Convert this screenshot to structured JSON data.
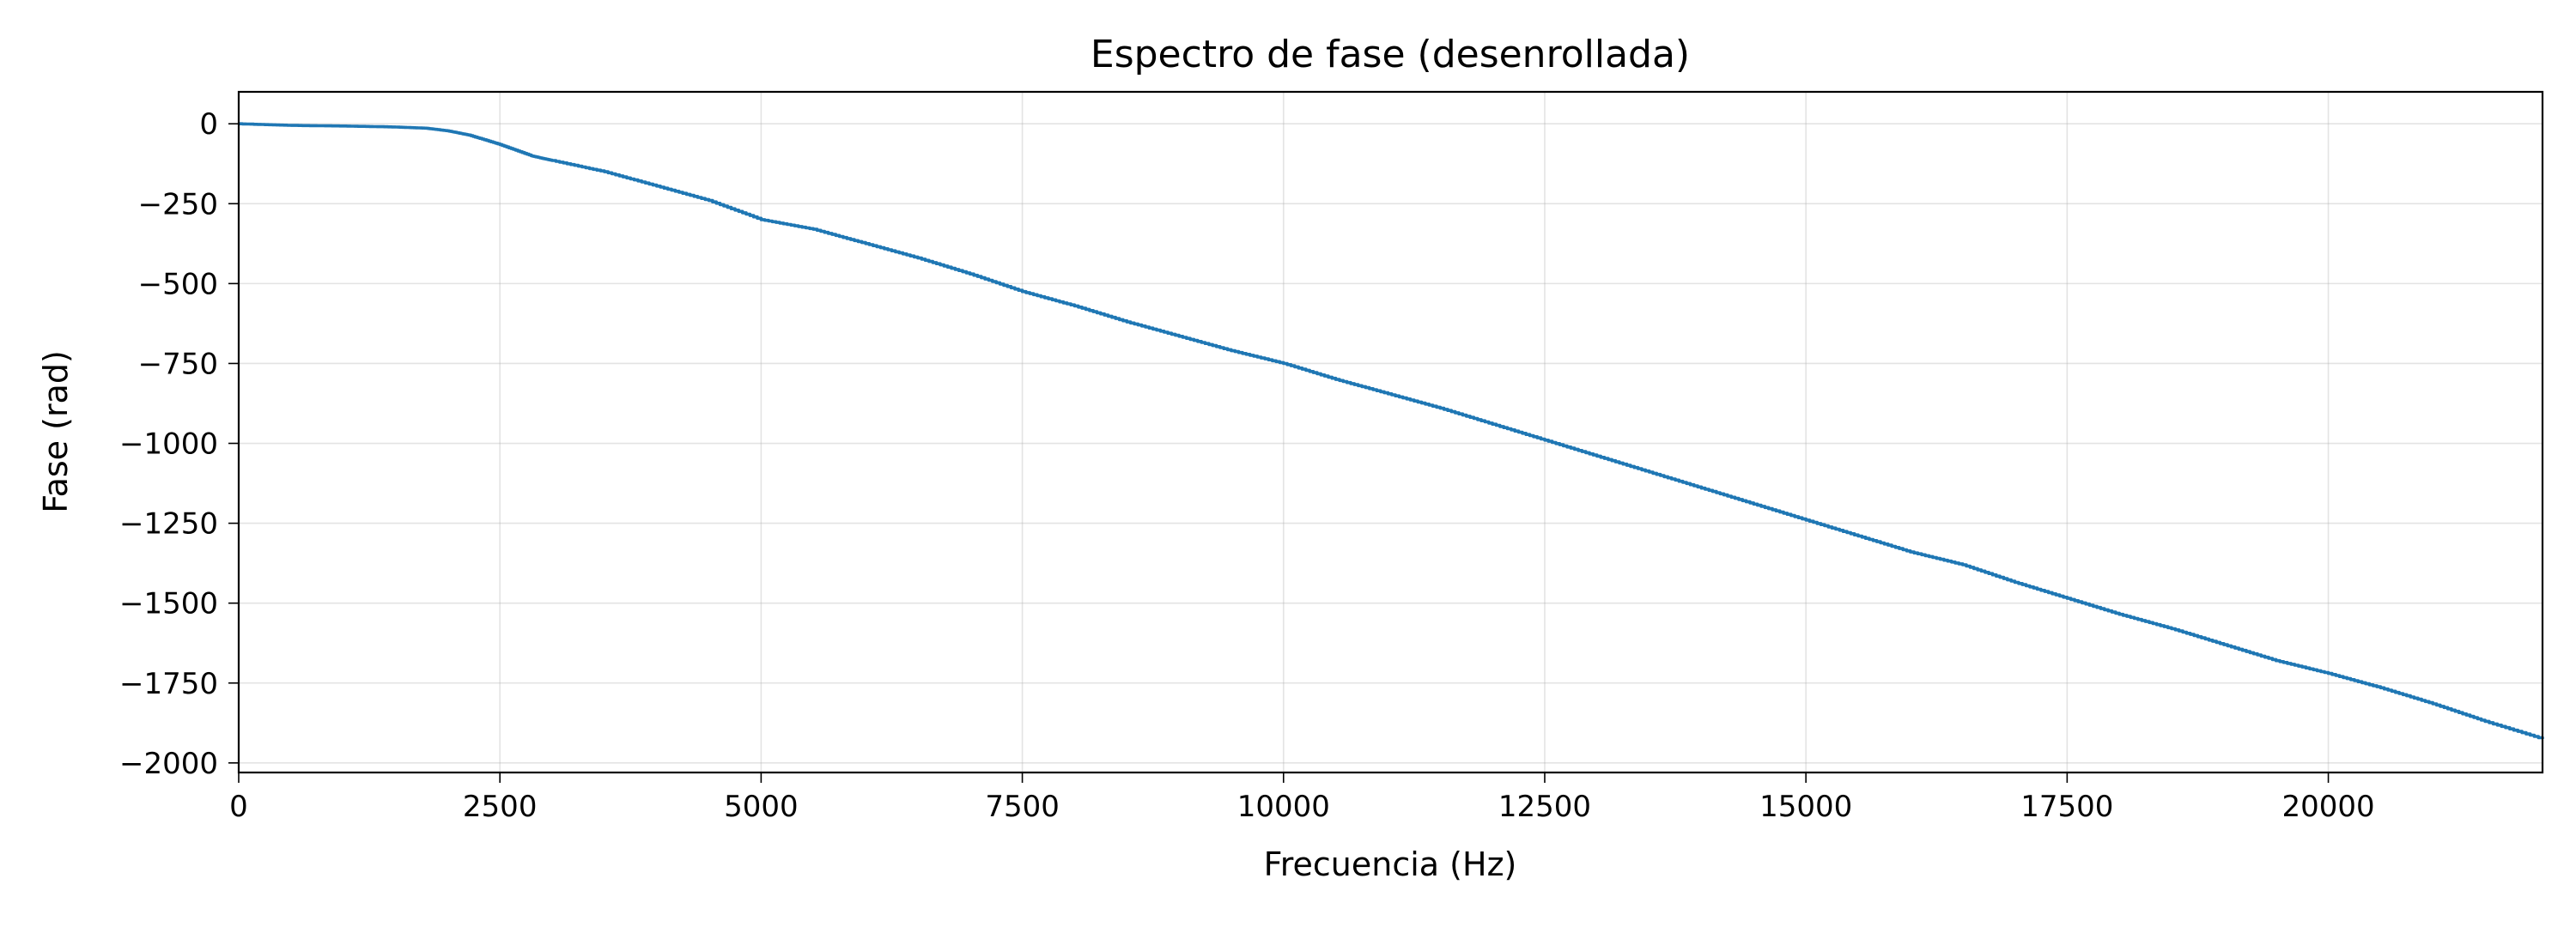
{
  "chart_data": {
    "type": "line",
    "title": "Espectro de fase (desenrollada)",
    "xlabel": "Frecuencia (Hz)",
    "ylabel": "Fase (rad)",
    "xlim": [
      0,
      22050
    ],
    "ylim": [
      -2030,
      100
    ],
    "grid": true,
    "legend": "none",
    "x_ticks": [
      0,
      2500,
      5000,
      7500,
      10000,
      12500,
      15000,
      17500,
      20000
    ],
    "x_tick_labels": [
      "0",
      "2500",
      "5000",
      "7500",
      "10000",
      "12500",
      "15000",
      "17500",
      "20000"
    ],
    "y_ticks": [
      0,
      -250,
      -500,
      -750,
      -1000,
      -1250,
      -1500,
      -1750,
      -2000
    ],
    "y_tick_labels": [
      "0",
      "−250",
      "−500",
      "−750",
      "−1000",
      "−1250",
      "−1500",
      "−1750",
      "−2000"
    ],
    "colors": {
      "line": "#1f77b4"
    },
    "series": [
      {
        "x": [
          0,
          500,
          1000,
          1500,
          1800,
          2000,
          2200,
          2500,
          2800,
          3000,
          3500,
          4000,
          4500,
          5000,
          5500,
          6000,
          6500,
          7000,
          7500,
          8000,
          8500,
          9000,
          9500,
          10000,
          10500,
          11000,
          11500,
          12000,
          12500,
          13000,
          13500,
          14000,
          14500,
          15000,
          15500,
          16000,
          16500,
          17000,
          17500,
          18000,
          18500,
          19000,
          19500,
          20000,
          20500,
          21000,
          21500,
          22050
        ],
        "y": [
          0,
          -5,
          -7,
          -10,
          -14,
          -22,
          -35,
          -65,
          -100,
          -115,
          -150,
          -195,
          -240,
          -300,
          -330,
          -375,
          -420,
          -470,
          -525,
          -570,
          -620,
          -665,
          -710,
          -750,
          -800,
          -845,
          -890,
          -940,
          -990,
          -1040,
          -1090,
          -1140,
          -1190,
          -1240,
          -1290,
          -1340,
          -1380,
          -1435,
          -1485,
          -1535,
          -1580,
          -1630,
          -1680,
          -1720,
          -1765,
          -1815,
          -1870,
          -1925
        ]
      }
    ]
  }
}
